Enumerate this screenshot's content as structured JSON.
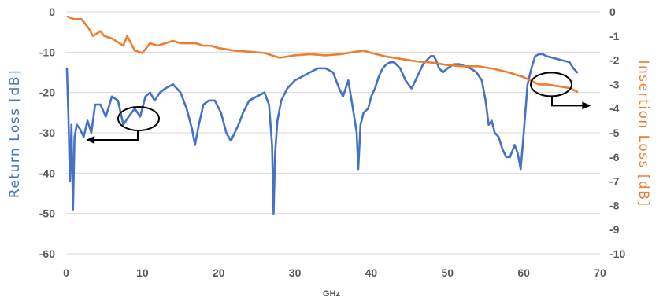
{
  "chart_data": {
    "type": "line",
    "title": "",
    "xlabel": "GHz",
    "ylabel_left": "Return Loss [dB]",
    "ylabel_right": "Insertion Loss [dB]",
    "xlim": [
      0,
      70
    ],
    "ylim_left": [
      -60,
      0
    ],
    "ylim_right": [
      -10,
      0
    ],
    "x_ticks": [
      "0",
      "10",
      "20",
      "30",
      "40",
      "50",
      "60",
      "70"
    ],
    "y_ticks_left": [
      "0",
      "-10",
      "-20",
      "-30",
      "-40",
      "-50",
      "-60"
    ],
    "y_ticks_right": [
      "0",
      "-1",
      "-2",
      "-3",
      "-4",
      "-5",
      "-6",
      "-7",
      "-8",
      "-9",
      "-10"
    ],
    "grid": "horizontal",
    "colors": {
      "return_loss": "#4472C4",
      "insertion_loss": "#ED7D31",
      "grid": "#D9D9D9",
      "text": "#595959",
      "annotation": "#000000"
    },
    "series": [
      {
        "axis": "left",
        "color": "#4472C4",
        "x": [
          0.1,
          0.3,
          0.5,
          0.7,
          0.9,
          1.1,
          1.4,
          1.8,
          2.3,
          2.8,
          3.3,
          3.8,
          4.5,
          5.2,
          6.0,
          6.8,
          7.5,
          8.2,
          9.0,
          9.7,
          10.4,
          11.0,
          11.6,
          12.3,
          13.0,
          14.0,
          15.0,
          15.8,
          16.5,
          16.9,
          17.4,
          18.0,
          18.7,
          19.5,
          20.3,
          21.0,
          21.6,
          22.1,
          22.6,
          23.2,
          24.0,
          25.0,
          26.0,
          26.6,
          27.0,
          27.2,
          27.4,
          27.7,
          28.2,
          29.0,
          30.0,
          31.0,
          32.0,
          33.0,
          34.0,
          35.0,
          35.8,
          36.3,
          37.0,
          37.6,
          38.1,
          38.3,
          38.6,
          39.0,
          39.6,
          40.0,
          40.5,
          41.0,
          41.5,
          42.0,
          42.5,
          43.0,
          43.8,
          44.5,
          45.3,
          45.8,
          46.3,
          46.8,
          47.3,
          47.8,
          48.2,
          48.5,
          48.9,
          49.4,
          50.0,
          50.8,
          51.6,
          52.3,
          53.0,
          53.8,
          54.5,
          55.0,
          55.4,
          55.8,
          56.2,
          56.7,
          57.2,
          57.7,
          58.2,
          58.8,
          59.2,
          59.6,
          60.0,
          60.5,
          61.0,
          61.5,
          62.0,
          62.5,
          63.0,
          64.0,
          65.0,
          66.0,
          66.5,
          67.0
        ],
        "y": [
          -14,
          -26,
          -42,
          -28,
          -49,
          -31,
          -28,
          -29,
          -31,
          -27,
          -30,
          -23,
          -23,
          -26,
          -21,
          -22,
          -28,
          -26,
          -24,
          -26,
          -21,
          -20,
          -22,
          -20,
          -19,
          -18,
          -20,
          -24,
          -29,
          -33,
          -28,
          -23,
          -22,
          -22,
          -25,
          -30,
          -32,
          -30,
          -28,
          -25,
          -22,
          -21,
          -20,
          -23,
          -33,
          -50,
          -35,
          -27,
          -22,
          -19,
          -17,
          -16,
          -15,
          -14,
          -14,
          -15,
          -19,
          -21,
          -17,
          -24,
          -30,
          -39,
          -28,
          -25,
          -24,
          -21,
          -19,
          -16,
          -14,
          -13,
          -12.5,
          -12.5,
          -14,
          -17,
          -19,
          -17,
          -15,
          -13,
          -12,
          -11,
          -11,
          -12,
          -14,
          -15,
          -14,
          -13,
          -13,
          -13.5,
          -14,
          -15,
          -17,
          -22,
          -28,
          -27,
          -30,
          -31,
          -34,
          -36,
          -36,
          -33,
          -35,
          -39,
          -30,
          -18,
          -14,
          -11,
          -10.5,
          -10.5,
          -11,
          -11.5,
          -12,
          -12.5,
          -14,
          -15
        ]
      },
      {
        "axis": "right",
        "color": "#ED7D31",
        "x": [
          0.2,
          1,
          2,
          3,
          3.5,
          4,
          4.5,
          5,
          6,
          7,
          7.5,
          8,
          9,
          10,
          11,
          12,
          13,
          14,
          15,
          16,
          17,
          18,
          19,
          20,
          22,
          24,
          26,
          28,
          30,
          32,
          34,
          36,
          38,
          39,
          40,
          42,
          44,
          46,
          48,
          50,
          52,
          54,
          56,
          58,
          60,
          61,
          62,
          63,
          64,
          65,
          66,
          67
        ],
        "y": [
          -0.2,
          -0.3,
          -0.3,
          -0.7,
          -1.0,
          -0.9,
          -0.8,
          -1.0,
          -1.1,
          -1.3,
          -1.4,
          -1.0,
          -1.6,
          -1.7,
          -1.3,
          -1.4,
          -1.3,
          -1.2,
          -1.3,
          -1.3,
          -1.3,
          -1.4,
          -1.4,
          -1.5,
          -1.6,
          -1.65,
          -1.7,
          -1.9,
          -1.8,
          -1.75,
          -1.8,
          -1.75,
          -1.65,
          -1.6,
          -1.7,
          -1.85,
          -1.95,
          -2.05,
          -2.1,
          -2.2,
          -2.25,
          -2.25,
          -2.35,
          -2.5,
          -2.7,
          -2.85,
          -3.0,
          -3.0,
          -3.05,
          -3.1,
          -3.15,
          -3.3
        ]
      }
    ],
    "annotations": [
      {
        "type": "ellipse-arrow",
        "target_series": "left",
        "direction": "left",
        "cx": 9.5,
        "cy": -26.5,
        "x_end": 2.6
      },
      {
        "type": "ellipse-arrow",
        "target_series": "right",
        "direction": "right",
        "cx": 63.6,
        "cy": -3.0,
        "x_end": 68.8
      }
    ]
  }
}
